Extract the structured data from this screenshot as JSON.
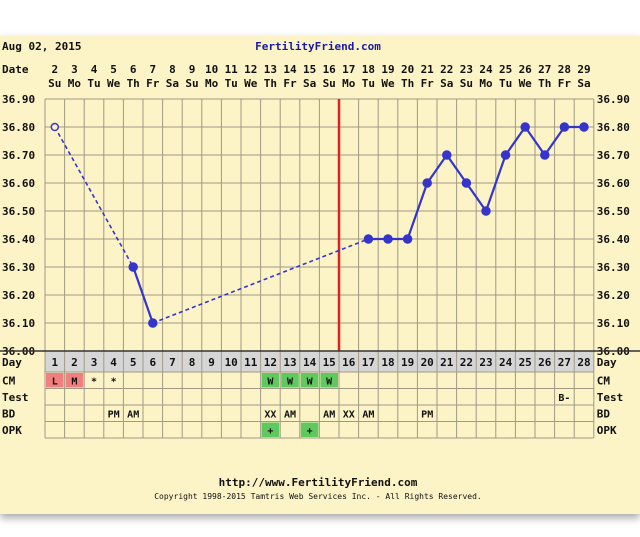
{
  "chart_data": {
    "type": "line",
    "date_label": "Aug 02, 2015",
    "site": "FertilityFriend.com",
    "footer_url": "http://www.FertilityFriend.com",
    "copyright": "Copyright 1998-2015 Tamtris Web Services Inc. - All Rights Reserved.",
    "row_labels": {
      "date": "Date",
      "day": "Day",
      "cm": "CM",
      "test": "Test",
      "bd": "BD",
      "opk": "OPK"
    },
    "dates": [
      "2",
      "3",
      "4",
      "5",
      "6",
      "7",
      "8",
      "9",
      "10",
      "11",
      "12",
      "13",
      "14",
      "15",
      "16",
      "17",
      "18",
      "19",
      "20",
      "21",
      "22",
      "23",
      "24",
      "25",
      "26",
      "27",
      "28",
      "29"
    ],
    "weekdays": [
      "Su",
      "Mo",
      "Tu",
      "We",
      "Th",
      "Fr",
      "Sa",
      "Su",
      "Mo",
      "Tu",
      "We",
      "Th",
      "Fr",
      "Sa",
      "Su",
      "Mo",
      "Tu",
      "We",
      "Th",
      "Fr",
      "Sa",
      "Su",
      "Mo",
      "Tu",
      "We",
      "Th",
      "Fr",
      "Sa"
    ],
    "cycle_days": [
      "1",
      "2",
      "3",
      "4",
      "5",
      "6",
      "7",
      "8",
      "9",
      "10",
      "11",
      "12",
      "13",
      "14",
      "15",
      "16",
      "17",
      "18",
      "19",
      "20",
      "21",
      "22",
      "23",
      "24",
      "25",
      "26",
      "27",
      "28"
    ],
    "y_ticks": [
      "36.90",
      "36.80",
      "36.70",
      "36.60",
      "36.50",
      "36.40",
      "36.30",
      "36.20",
      "36.10",
      "36.00"
    ],
    "ylim": [
      36.0,
      36.9
    ],
    "temps": [
      36.8,
      null,
      null,
      null,
      36.3,
      36.1,
      null,
      null,
      null,
      null,
      null,
      null,
      null,
      null,
      null,
      null,
      36.4,
      36.4,
      36.4,
      36.6,
      36.7,
      36.6,
      36.5,
      36.7,
      36.8,
      36.7,
      36.8,
      36.8
    ],
    "open_points": [
      1
    ],
    "dashed_segments": [
      [
        1,
        5
      ],
      [
        6,
        17
      ]
    ],
    "solid_segments": [
      [
        5,
        6
      ],
      [
        17,
        28
      ]
    ],
    "coverline_day": 15,
    "colors": {
      "line": "#3535cc",
      "coverline": "#dd2222",
      "grid": "#a09a86",
      "paper": "#fcf3c6",
      "header": "#d6d6d6",
      "menses": "#f07f7f",
      "fertile": "#5fc85f"
    },
    "cm": [
      "L",
      "M",
      "*",
      "*",
      "",
      "",
      "",
      "",
      "",
      "",
      "",
      "W",
      "W",
      "W",
      "W",
      "",
      "",
      "",
      "",
      "",
      "",
      "",
      "",
      "",
      "",
      "",
      "",
      ""
    ],
    "test": [
      "",
      "",
      "",
      "",
      "",
      "",
      "",
      "",
      "",
      "",
      "",
      "",
      "",
      "",
      "",
      "",
      "",
      "",
      "",
      "",
      "",
      "",
      "",
      "",
      "",
      "",
      "B-",
      ""
    ],
    "bd": [
      "",
      "",
      "",
      "PM",
      "AM",
      "",
      "",
      "",
      "",
      "",
      "",
      "XX",
      "AM",
      "",
      "AM",
      "XX",
      "AM",
      "",
      "",
      "PM",
      "",
      "",
      "",
      "",
      "",
      "",
      "",
      ""
    ],
    "opk": [
      "",
      "",
      "",
      "",
      "",
      "",
      "",
      "",
      "",
      "",
      "",
      "+",
      "",
      "+",
      "",
      "",
      "",
      "",
      "",
      "",
      "",
      "",
      "",
      "",
      "",
      "",
      "",
      ""
    ]
  }
}
